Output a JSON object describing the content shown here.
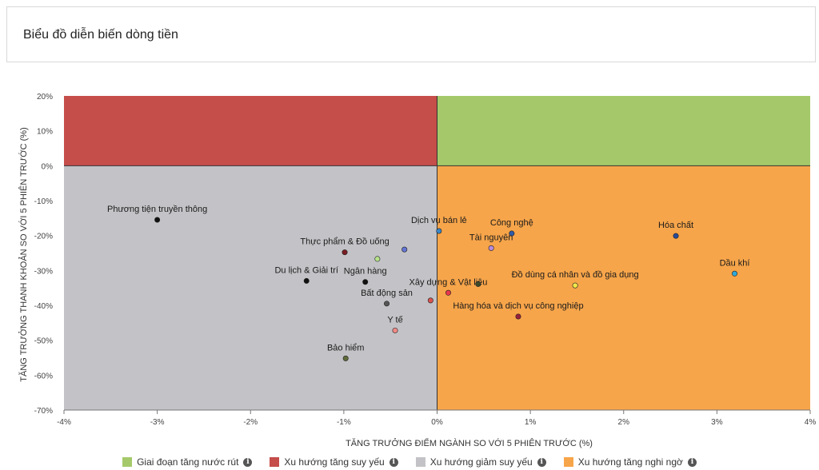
{
  "header": {
    "title": "Biểu đồ diễn biến dòng tiền"
  },
  "chart_data": {
    "type": "scatter",
    "xlabel": "TĂNG TRƯỞNG ĐIỂM NGÀNH SO VỚI 5 PHIÊN TRƯỚC (%)",
    "ylabel": "TĂNG TRƯỞNG THANH KHOẢN SO VỚI 5 PHIÊN TRƯỚC (%)",
    "xlim": [
      -4,
      4
    ],
    "ylim": [
      -70,
      20
    ],
    "x_ticks": [
      -4,
      -3,
      -2,
      -1,
      0,
      1,
      2,
      3,
      4
    ],
    "x_tick_labels": [
      "-4%",
      "-3%",
      "-2%",
      "-1%",
      "0%",
      "1%",
      "2%",
      "3%",
      "4%"
    ],
    "y_ticks": [
      20,
      10,
      0,
      -10,
      -20,
      -30,
      -40,
      -50,
      -60,
      -70
    ],
    "y_tick_labels": [
      "20%",
      "10%",
      "0%",
      "-10%",
      "-20%",
      "-30%",
      "-40%",
      "-50%",
      "-60%",
      "-70%"
    ],
    "quadrants": [
      {
        "name": "Giai đoạn tăng nước rút",
        "color": "#a5c96a",
        "x": [
          0,
          4
        ],
        "y": [
          0,
          20
        ]
      },
      {
        "name": "Xu hướng tăng suy yếu",
        "color": "#c54d4a",
        "x": [
          -4,
          0
        ],
        "y": [
          0,
          20
        ]
      },
      {
        "name": "Xu hướng giảm suy yếu",
        "color": "#c3c3c7",
        "x": [
          -4,
          0
        ],
        "y": [
          -70,
          0
        ]
      },
      {
        "name": "Xu hướng tăng nghi ngờ",
        "color": "#f7a54a",
        "x": [
          0,
          4
        ],
        "y": [
          -70,
          0
        ]
      }
    ],
    "points": [
      {
        "label": "Phương tiện truyền thông",
        "x": -3.0,
        "y": -15.5,
        "color": "#111111"
      },
      {
        "label": "Thực phẩm & Đồ uống",
        "x": -0.99,
        "y": -24.8,
        "color": "#7a1c22"
      },
      {
        "label": "",
        "x": -0.64,
        "y": -26.7,
        "color": "#b6e28a"
      },
      {
        "label": "",
        "x": -0.35,
        "y": -24.0,
        "color": "#6676d6"
      },
      {
        "label": "Du lịch & Giải trí",
        "x": -1.4,
        "y": -33.0,
        "color": "#111111"
      },
      {
        "label": "Ngân hàng",
        "x": -0.77,
        "y": -33.3,
        "color": "#111111"
      },
      {
        "label": "Bất động sản",
        "x": -0.54,
        "y": -39.5,
        "color": "#555555"
      },
      {
        "label": "Y tế",
        "x": -0.45,
        "y": -47.2,
        "color": "#f08a86"
      },
      {
        "label": "Bảo hiểm",
        "x": -0.98,
        "y": -55.2,
        "color": "#5e6b3a"
      },
      {
        "label": "Dịch vụ bán lẻ",
        "x": 0.02,
        "y": -18.7,
        "color": "#3a86c8"
      },
      {
        "label": "",
        "x": -0.07,
        "y": -38.6,
        "color": "#d9534f"
      },
      {
        "label": "Xây dựng & Vật liệu",
        "x": 0.12,
        "y": -36.4,
        "color": "#e8364b"
      },
      {
        "label": "",
        "x": 0.44,
        "y": -33.9,
        "color": "#3c4a2a"
      },
      {
        "label": "Công nghệ",
        "x": 0.8,
        "y": -19.4,
        "color": "#2e5aa8"
      },
      {
        "label": "Tài nguyên",
        "x": 0.58,
        "y": -23.6,
        "color": "#b98bdc"
      },
      {
        "label": "Hàng hóa và dịch vụ công nghiệp",
        "x": 0.87,
        "y": -43.2,
        "color": "#9a1f3c"
      },
      {
        "label": "Đồ dùng cá nhân và đồ gia dụng",
        "x": 1.48,
        "y": -34.3,
        "color": "#f1e94a"
      },
      {
        "label": "Hóa chất",
        "x": 2.56,
        "y": -20.1,
        "color": "#2a4b98"
      },
      {
        "label": "Dầu khí",
        "x": 3.19,
        "y": -30.9,
        "color": "#2fa9d8"
      }
    ],
    "legend": [
      {
        "name": "Giai đoạn tăng nước rút",
        "color": "#a5c96a"
      },
      {
        "name": "Xu hướng tăng suy yếu",
        "color": "#c54d4a"
      },
      {
        "name": "Xu hướng giảm suy yếu",
        "color": "#c3c3c7"
      },
      {
        "name": "Xu hướng tăng nghi ngờ",
        "color": "#f7a54a"
      }
    ],
    "legend_position": "bottom"
  }
}
